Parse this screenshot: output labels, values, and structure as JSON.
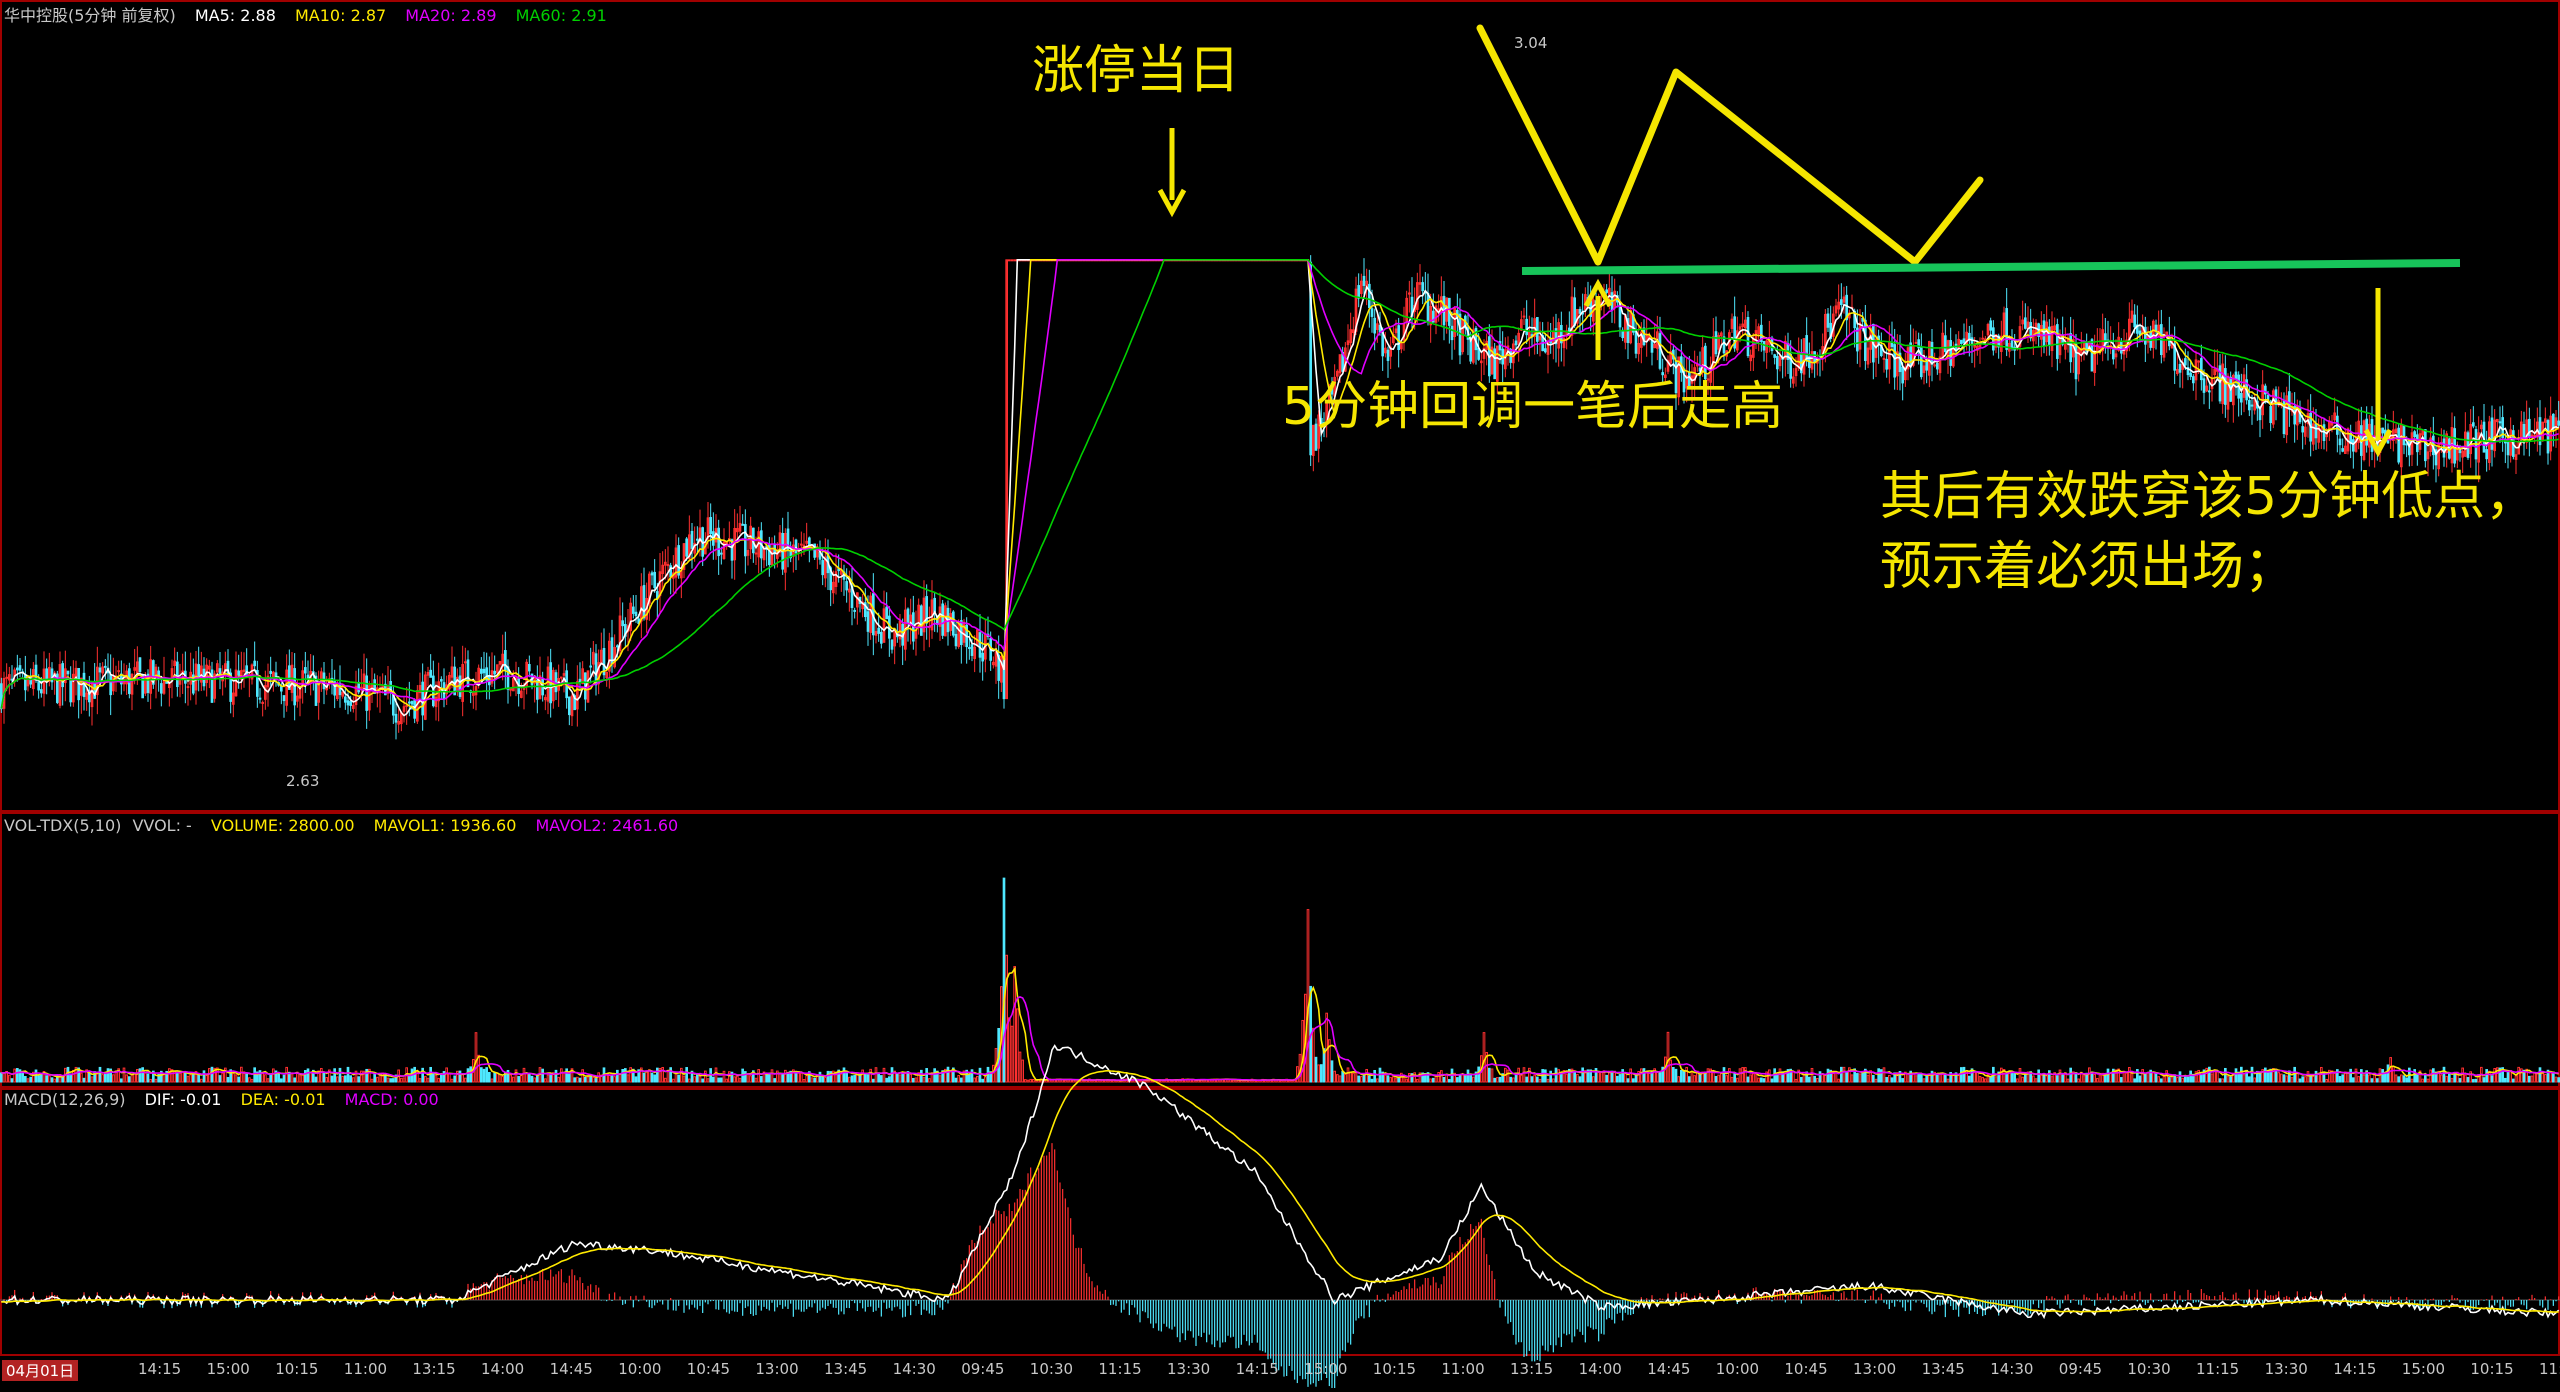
{
  "colors": {
    "up": "#ff3030",
    "down": "#4fe8ff",
    "ma5": "#ffffff",
    "ma10": "#ffea00",
    "ma20": "#e000ff",
    "ma60": "#00d000",
    "dif": "#ffffff",
    "dea": "#ffea00",
    "annot": "#f5e600",
    "support": "#17c45a",
    "frame": "#a00000"
  },
  "price_panel": {
    "header": {
      "name": "华中控股(5分钟 前复权)",
      "ma5": "MA5: 2.88",
      "ma10": "MA10: 2.87",
      "ma20": "MA20: 2.89",
      "ma60": "MA60: 2.91"
    },
    "high_label": "3.04",
    "low_label": "2.63"
  },
  "volume_panel": {
    "header": {
      "name": "VOL-TDX(5,10)",
      "vvol": "VVOL: -",
      "volume": "VOLUME: 2800.00",
      "mavol1": "MAVOL1: 1936.60",
      "mavol2": "MAVOL2: 2461.60"
    }
  },
  "macd_panel": {
    "header": {
      "name": "MACD(12,26,9)",
      "dif": "DIF: -0.01",
      "dea": "DEA: -0.01",
      "macd": "MACD: 0.00"
    }
  },
  "annotations": {
    "limit_up": "涨停当日",
    "pullback": "5分钟回调一笔后走高",
    "break_line1": "其后有效跌穿该5分钟低点，",
    "break_line2": "预示着必须出场；"
  },
  "time_axis": {
    "date": "04月01日",
    "ticks": [
      "14:15",
      "15:00",
      "10:15",
      "11:00",
      "13:15",
      "14:00",
      "14:45",
      "10:00",
      "10:45",
      "13:00",
      "13:45",
      "14:30",
      "09:45",
      "10:30",
      "11:15",
      "13:30",
      "14:15",
      "15:00",
      "10:15",
      "11:00",
      "13:15",
      "14:00",
      "14:45",
      "10:00",
      "10:45",
      "13:00",
      "13:45",
      "14:30",
      "09:45",
      "10:30",
      "11:15",
      "13:30",
      "14:15",
      "15:00",
      "10:15",
      "11:"
    ]
  },
  "chart_data": {
    "type": "line",
    "title": "华中控股(5分钟 前复权)",
    "xlabel": "",
    "ylabel": "",
    "ylim": [
      2.6,
      3.06
    ],
    "price_anchors": {
      "x": [
        0,
        60,
        130,
        150,
        170,
        190,
        215,
        245,
        260,
        305,
        335,
        350,
        372,
        380,
        390,
        400,
        410,
        420,
        430,
        440,
        455,
        470,
        480,
        490,
        500,
        510,
        520,
        530,
        540,
        550,
        560,
        570,
        580,
        590,
        600,
        610,
        620,
        630,
        640,
        650,
        660,
        670,
        680,
        690,
        700,
        710,
        720,
        735,
        750,
        765,
        780,
        800,
        830,
        870,
        910,
        960
      ],
      "y": [
        2.67,
        2.675,
        2.67,
        2.66,
        2.675,
        2.68,
        2.665,
        2.73,
        2.76,
        2.745,
        2.7,
        2.715,
        2.69,
        2.655,
        2.71,
        2.73,
        2.8,
        2.87,
        2.92,
        3.04,
        2.91,
        2.86,
        2.87,
        2.81,
        2.84,
        2.91,
        2.86,
        2.9,
        2.89,
        2.87,
        2.86,
        2.88,
        2.87,
        2.89,
        2.9,
        2.88,
        2.87,
        2.85,
        2.86,
        2.88,
        2.87,
        2.86,
        2.87,
        2.89,
        2.87,
        2.86,
        2.86,
        2.87,
        2.88,
        2.875,
        2.86,
        2.88,
        2.85,
        2.82,
        2.81,
        2.82
      ]
    },
    "limit_up": {
      "x_start": 377,
      "x_end": 490,
      "price": 2.92
    },
    "series": [
      {
        "name": "MA5",
        "values": [
          2.88
        ]
      },
      {
        "name": "MA10",
        "values": [
          2.87
        ]
      },
      {
        "name": "MA20",
        "values": [
          2.89
        ]
      },
      {
        "name": "MA60",
        "values": [
          2.91
        ]
      }
    ],
    "volume": {
      "name": "VOLUME",
      "last": 2800.0,
      "mavol1": 1936.6,
      "mavol2": 2461.6,
      "spikes": [
        {
          "x": 178,
          "v": 0.22
        },
        {
          "x": 376,
          "v": 1.0
        },
        {
          "x": 380,
          "v": 0.55
        },
        {
          "x": 490,
          "v": 0.85
        },
        {
          "x": 497,
          "v": 0.33
        },
        {
          "x": 556,
          "v": 0.22
        },
        {
          "x": 625,
          "v": 0.22
        },
        {
          "x": 896,
          "v": 0.13
        }
      ]
    },
    "macd": {
      "dif": -0.01,
      "dea": -0.01,
      "macd": 0.0,
      "anchors": {
        "x": [
          0,
          170,
          215,
          245,
          355,
          380,
          395,
          430,
          470,
          500,
          540,
          555,
          575,
          600,
          640,
          700,
          760,
          870,
          960
        ],
        "y": [
          0.0,
          0.0,
          0.04,
          0.035,
          0.0,
          0.09,
          0.18,
          0.15,
          0.09,
          0.0,
          0.03,
          0.08,
          0.02,
          -0.005,
          0.0,
          0.01,
          -0.01,
          0.0,
          -0.01
        ]
      }
    }
  }
}
